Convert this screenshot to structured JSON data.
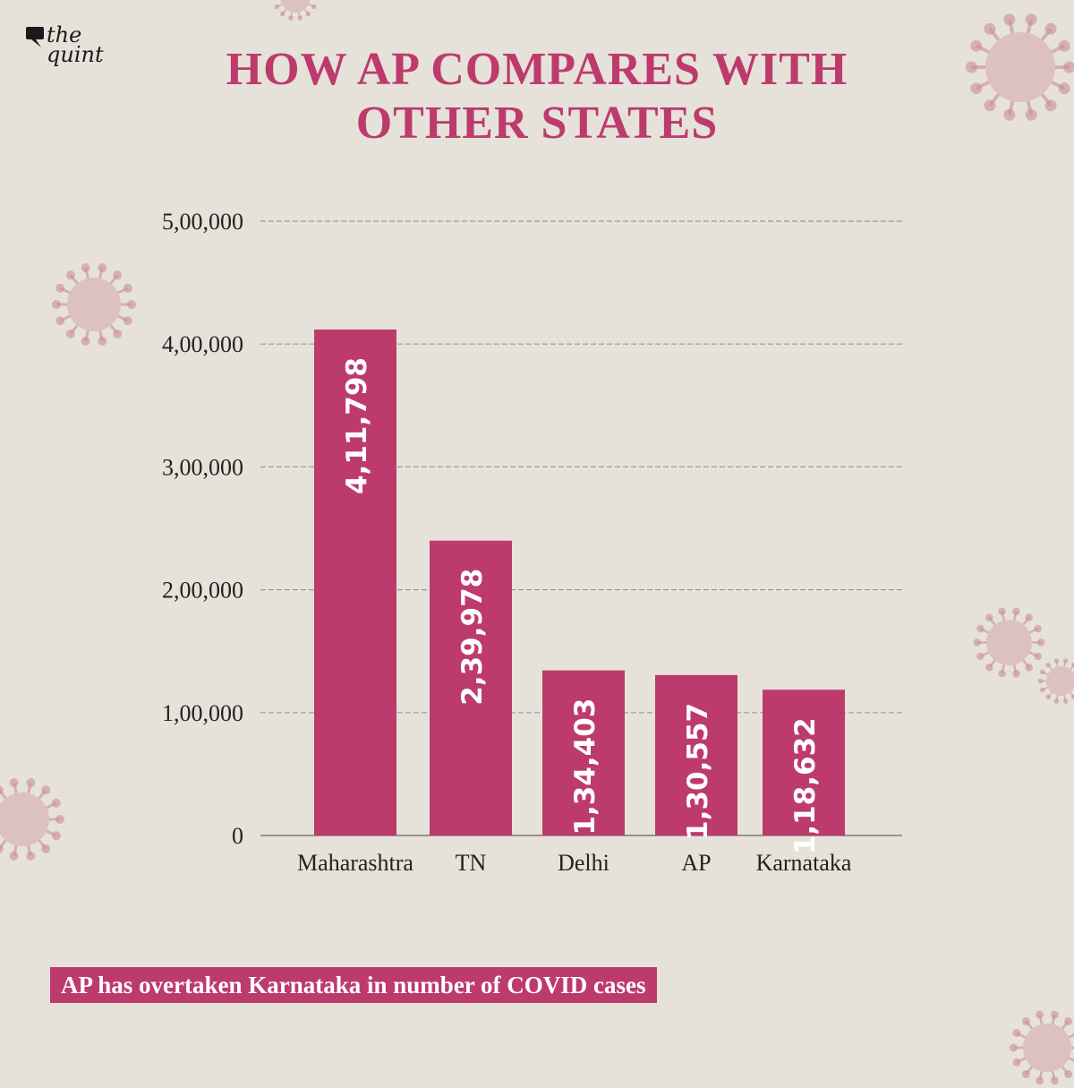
{
  "brand": {
    "line1": "the",
    "line2": "quint"
  },
  "title_lines": [
    "HOW AP COMPARES WITH",
    "OTHER STATES"
  ],
  "caption": "AP has overtaken Karnataka in number of COVID cases",
  "colors": {
    "accent": "#bd3a6c",
    "background": "#e6e2da",
    "grid": "#9a9a9a",
    "text": "#222222"
  },
  "chart_data": {
    "type": "bar",
    "title": "HOW AP COMPARES WITH OTHER STATES",
    "categories": [
      "Maharashtra",
      "TN",
      "Delhi",
      "AP",
      "Karnataka"
    ],
    "values": [
      411798,
      239978,
      134403,
      130557,
      118632
    ],
    "value_labels": [
      "4,11,798",
      "2,39,978",
      "1,34,403",
      "1,30,557",
      "1,18,632"
    ],
    "ylim": [
      0,
      500000
    ],
    "y_ticks": [
      0,
      100000,
      200000,
      300000,
      400000,
      500000
    ],
    "y_tick_labels": [
      "0",
      "1,00,000",
      "2,00,000",
      "3,00,000",
      "4,00,000",
      "5,00,000"
    ],
    "grid": true,
    "data_labels_rotated": true,
    "xlabel": "",
    "ylabel": ""
  }
}
